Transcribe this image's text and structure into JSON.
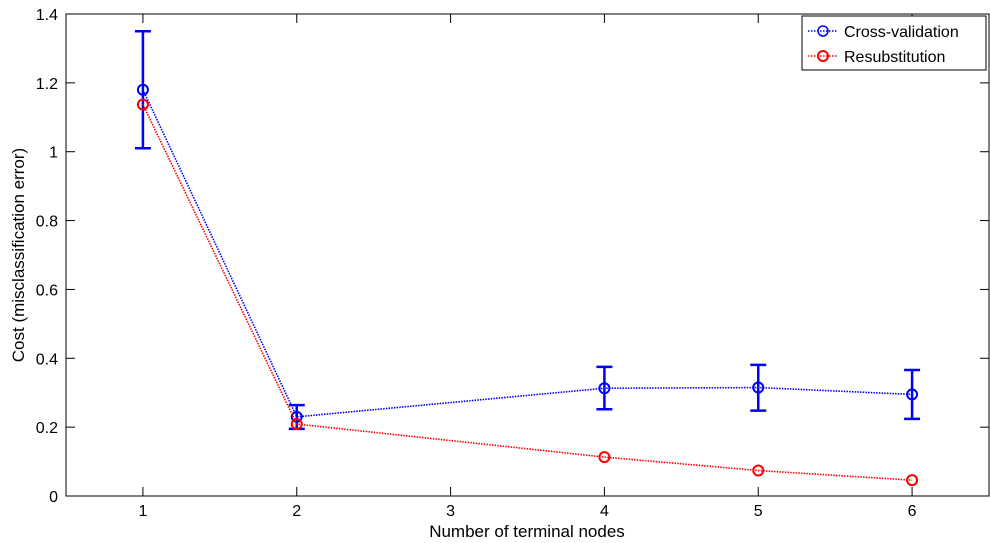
{
  "chart_data": {
    "type": "line",
    "xlabel": "Number of terminal nodes",
    "ylabel": "Cost (misclassification error)",
    "x_ticks": [
      "1",
      "2",
      "3",
      "4",
      "5",
      "6"
    ],
    "y_ticks": [
      "0",
      "0.2",
      "0.4",
      "0.6",
      "0.8",
      "1",
      "1.2",
      "1.4"
    ],
    "xlim": [
      0.5,
      6.5
    ],
    "ylim": [
      0,
      1.4
    ],
    "grid": false,
    "legend_position": "top-right",
    "series": [
      {
        "name": "Cross-validation",
        "color": "#0000ff",
        "marker": "circle",
        "line_style": "dotted",
        "x": [
          1,
          2,
          4,
          5,
          6
        ],
        "y": [
          1.18,
          0.23,
          0.313,
          0.315,
          0.295
        ],
        "error_low": [
          1.01,
          0.195,
          0.252,
          0.248,
          0.224
        ],
        "error_high": [
          1.35,
          0.264,
          0.375,
          0.381,
          0.366
        ]
      },
      {
        "name": "Resubstitution",
        "color": "#ff0000",
        "marker": "circle",
        "line_style": "dotted",
        "x": [
          1,
          2,
          4,
          5,
          6
        ],
        "y": [
          1.137,
          0.209,
          0.113,
          0.074,
          0.046
        ]
      }
    ]
  }
}
